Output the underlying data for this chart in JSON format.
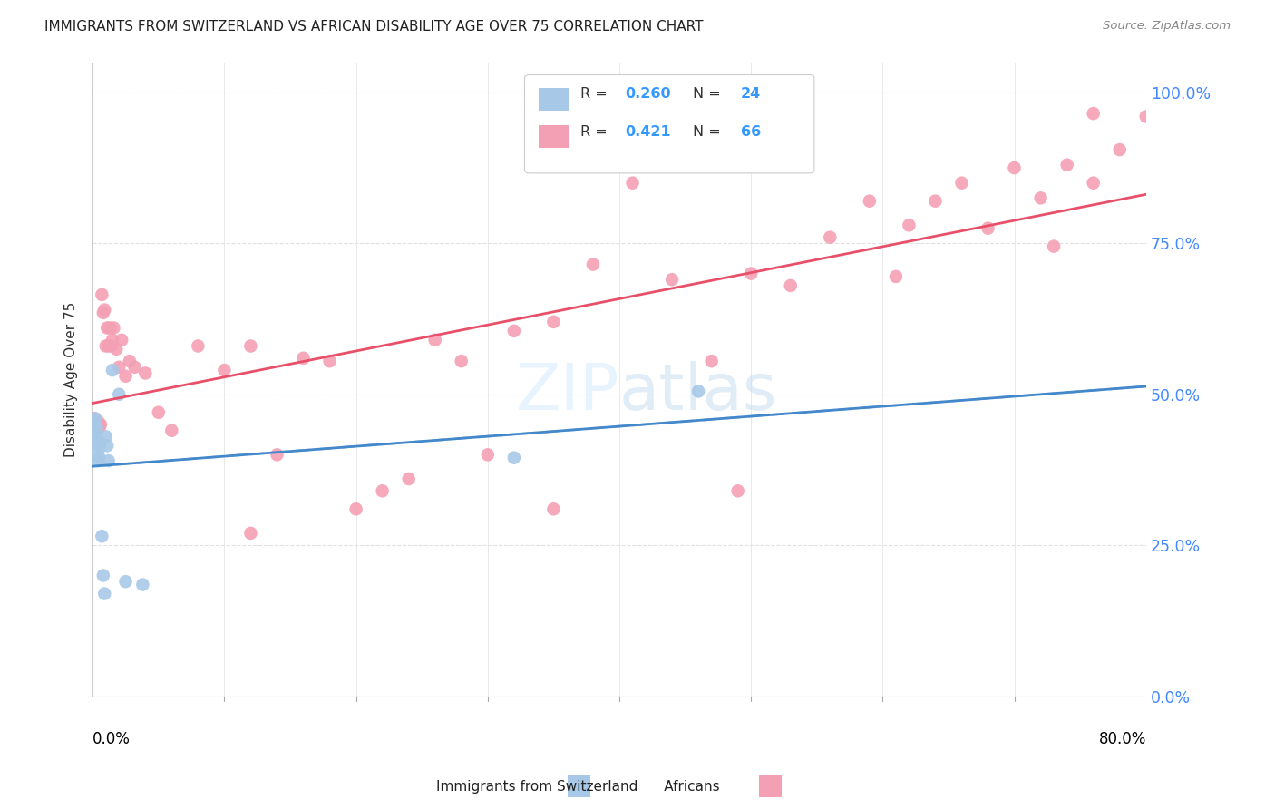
{
  "title": "IMMIGRANTS FROM SWITZERLAND VS AFRICAN DISABILITY AGE OVER 75 CORRELATION CHART",
  "source": "Source: ZipAtlas.com",
  "ylabel": "Disability Age Over 75",
  "ytick_labels": [
    "0.0%",
    "25.0%",
    "50.0%",
    "75.0%",
    "100.0%"
  ],
  "ytick_values": [
    0.0,
    0.25,
    0.5,
    0.75,
    1.0
  ],
  "xlim": [
    0.0,
    0.8
  ],
  "ylim": [
    0.0,
    1.05
  ],
  "legend_r1": "0.260",
  "legend_n1": "24",
  "legend_r2": "0.421",
  "legend_n2": "66",
  "color_swiss": "#a8c8e8",
  "color_african": "#f4a0b4",
  "line_color_swiss_solid": "#4488cc",
  "line_color_african": "#e8506a",
  "line_color_swiss_dashed": "#88bbdd",
  "background_color": "#ffffff",
  "grid_color": "#e0e0e0",
  "watermark_color": "#ddeeff",
  "swiss_x": [
    0.001,
    0.001,
    0.002,
    0.002,
    0.002,
    0.003,
    0.003,
    0.004,
    0.004,
    0.005,
    0.005,
    0.006,
    0.007,
    0.008,
    0.009,
    0.01,
    0.011,
    0.012,
    0.015,
    0.02,
    0.025,
    0.038,
    0.32,
    0.46
  ],
  "swiss_y": [
    0.435,
    0.455,
    0.44,
    0.46,
    0.42,
    0.435,
    0.445,
    0.39,
    0.405,
    0.415,
    0.395,
    0.42,
    0.265,
    0.2,
    0.17,
    0.43,
    0.415,
    0.39,
    0.54,
    0.5,
    0.19,
    0.185,
    0.395,
    0.505
  ],
  "african_x": [
    0.001,
    0.002,
    0.003,
    0.004,
    0.005,
    0.006,
    0.007,
    0.008,
    0.009,
    0.01,
    0.011,
    0.012,
    0.013,
    0.014,
    0.015,
    0.016,
    0.018,
    0.02,
    0.022,
    0.025,
    0.028,
    0.032,
    0.04,
    0.05,
    0.06,
    0.08,
    0.1,
    0.12,
    0.14,
    0.16,
    0.18,
    0.2,
    0.22,
    0.24,
    0.26,
    0.28,
    0.3,
    0.32,
    0.35,
    0.38,
    0.41,
    0.44,
    0.47,
    0.5,
    0.53,
    0.56,
    0.59,
    0.62,
    0.64,
    0.66,
    0.68,
    0.7,
    0.72,
    0.74,
    0.76,
    0.78,
    0.8,
    0.001,
    0.003,
    0.005,
    0.12,
    0.35,
    0.49,
    0.61,
    0.73,
    0.76
  ],
  "african_y": [
    0.46,
    0.455,
    0.445,
    0.455,
    0.45,
    0.45,
    0.665,
    0.635,
    0.64,
    0.58,
    0.61,
    0.58,
    0.61,
    0.58,
    0.59,
    0.61,
    0.575,
    0.545,
    0.59,
    0.53,
    0.555,
    0.545,
    0.535,
    0.47,
    0.44,
    0.58,
    0.54,
    0.27,
    0.4,
    0.56,
    0.555,
    0.31,
    0.34,
    0.36,
    0.59,
    0.555,
    0.4,
    0.605,
    0.62,
    0.715,
    0.85,
    0.69,
    0.555,
    0.7,
    0.68,
    0.76,
    0.82,
    0.78,
    0.82,
    0.85,
    0.775,
    0.875,
    0.825,
    0.88,
    0.85,
    0.905,
    0.96,
    0.455,
    0.455,
    0.445,
    0.58,
    0.31,
    0.34,
    0.695,
    0.745,
    0.965
  ]
}
